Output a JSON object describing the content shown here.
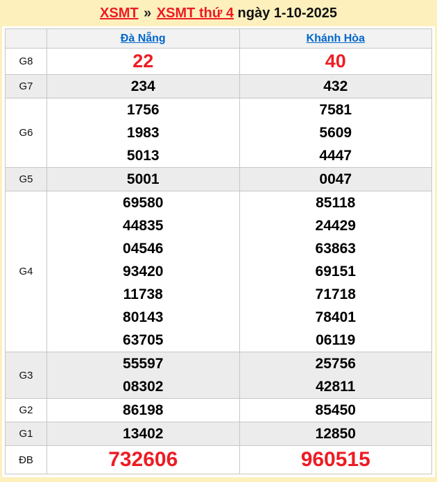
{
  "title": {
    "link_xsmt": "XSMT",
    "separator": "»",
    "link_day": "XSMT thứ 4",
    "date_text": "ngày 1-10-2025"
  },
  "header": {
    "col1": "Đà Nẵng",
    "col2": "Khánh Hòa"
  },
  "prizes": {
    "g8": {
      "label": "G8",
      "c1": [
        "22"
      ],
      "c2": [
        "40"
      ]
    },
    "g7": {
      "label": "G7",
      "c1": [
        "234"
      ],
      "c2": [
        "432"
      ]
    },
    "g6": {
      "label": "G6",
      "c1": [
        "1756",
        "1983",
        "5013"
      ],
      "c2": [
        "7581",
        "5609",
        "4447"
      ]
    },
    "g5": {
      "label": "G5",
      "c1": [
        "5001"
      ],
      "c2": [
        "0047"
      ]
    },
    "g4": {
      "label": "G4",
      "c1": [
        "69580",
        "44835",
        "04546",
        "93420",
        "11738",
        "80143",
        "63705"
      ],
      "c2": [
        "85118",
        "24429",
        "63863",
        "69151",
        "71718",
        "78401",
        "06119"
      ]
    },
    "g3": {
      "label": "G3",
      "c1": [
        "55597",
        "08302"
      ],
      "c2": [
        "25756",
        "42811"
      ]
    },
    "g2": {
      "label": "G2",
      "c1": [
        "86198"
      ],
      "c2": [
        "85450"
      ]
    },
    "g1": {
      "label": "G1",
      "c1": [
        "13402"
      ],
      "c2": [
        "12850"
      ]
    },
    "db": {
      "label": "ĐB",
      "c1": [
        "732606"
      ],
      "c2": [
        "960515"
      ]
    }
  },
  "colors": {
    "page_background": "#FDF0BD",
    "accent_red": "#ED1C24",
    "link_blue": "#0066CC",
    "row_alt_gray": "#ececec",
    "header_gray": "#f2f2f2",
    "border_gray": "#c6c6c6"
  }
}
